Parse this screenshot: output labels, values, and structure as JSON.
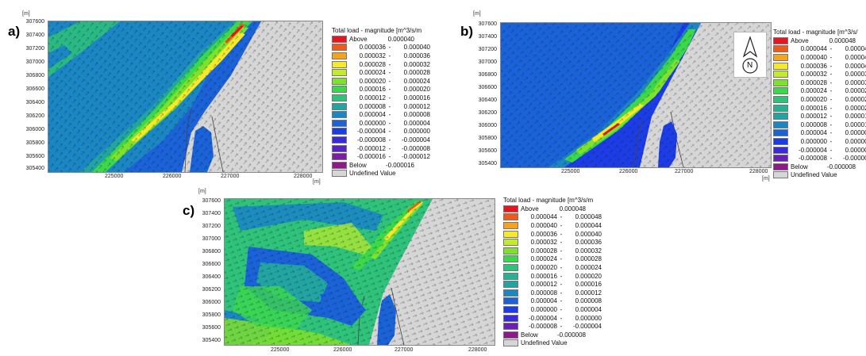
{
  "panels": [
    {
      "letter": "a)",
      "unit_y": "[m]",
      "unit_x": "[m]",
      "yticks": [
        "307600",
        "307400",
        "307200",
        "307000",
        "306800",
        "306600",
        "306400",
        "306200",
        "306000",
        "305800",
        "305600",
        "305400"
      ],
      "xticks": [
        "225000",
        "226000",
        "227000",
        "228000"
      ],
      "legend_title": "Total load - magnitude [m^3/s/m",
      "legend": [
        {
          "label": "Above",
          "hi": "0.000040",
          "color": "#e8141e"
        },
        {
          "lo": "0.000036",
          "hi": "0.000040",
          "color": "#ee5a18"
        },
        {
          "lo": "0.000032",
          "hi": "0.000036",
          "color": "#f5a21c"
        },
        {
          "lo": "0.000028",
          "hi": "0.000032",
          "color": "#f6e82a"
        },
        {
          "lo": "0.000024",
          "hi": "0.000028",
          "color": "#c2ec2a"
        },
        {
          "lo": "0.000020",
          "hi": "0.000024",
          "color": "#7ee22c"
        },
        {
          "lo": "0.000016",
          "hi": "0.000020",
          "color": "#3cd84c"
        },
        {
          "lo": "0.000012",
          "hi": "0.000016",
          "color": "#2ec27a"
        },
        {
          "lo": "0.000008",
          "hi": "0.000012",
          "color": "#22a4a2"
        },
        {
          "lo": "0.000004",
          "hi": "0.000008",
          "color": "#1a86c4"
        },
        {
          "lo": "0.000000",
          "hi": "0.000004",
          "color": "#1a62d8"
        },
        {
          "lo": "-0.000004",
          "hi": "0.000000",
          "color": "#1c3ce6"
        },
        {
          "lo": "-0.000008",
          "hi": "-0.000004",
          "color": "#3a2adc"
        },
        {
          "lo": "-0.000012",
          "hi": "-0.000008",
          "color": "#5a22c6"
        },
        {
          "lo": "-0.000016",
          "hi": "-0.000012",
          "color": "#7a1ea8"
        },
        {
          "label": "Below",
          "hi": "-0.000016",
          "color": "#8e1a8a"
        },
        {
          "label": "Undefined Value",
          "color": "#d6d6d6"
        }
      ]
    },
    {
      "letter": "b)",
      "unit_y": "[m]",
      "unit_x": "[m]",
      "yticks": [
        "307600",
        "307400",
        "307200",
        "307000",
        "306800",
        "306600",
        "306400",
        "306200",
        "306000",
        "305800",
        "305600",
        "305400"
      ],
      "xticks": [
        "225000",
        "226000",
        "227000",
        "228000"
      ],
      "legend_title": "Total load - magnitude [m^3/s/",
      "north_label": "N",
      "legend": [
        {
          "label": "Above",
          "hi": "0.000048",
          "color": "#e8141e"
        },
        {
          "lo": "0.000044",
          "hi": "0.000048",
          "color": "#ee5a18"
        },
        {
          "lo": "0.000040",
          "hi": "0.000044",
          "color": "#f5a21c"
        },
        {
          "lo": "0.000036",
          "hi": "0.000040",
          "color": "#f6e82a"
        },
        {
          "lo": "0.000032",
          "hi": "0.000036",
          "color": "#c2ec2a"
        },
        {
          "lo": "0.000028",
          "hi": "0.000032",
          "color": "#7ee22c"
        },
        {
          "lo": "0.000024",
          "hi": "0.000028",
          "color": "#3cd84c"
        },
        {
          "lo": "0.000020",
          "hi": "0.000024",
          "color": "#2ec27a"
        },
        {
          "lo": "0.000016",
          "hi": "0.000020",
          "color": "#26b292"
        },
        {
          "lo": "0.000012",
          "hi": "0.000016",
          "color": "#22a4a2"
        },
        {
          "lo": "0.000008",
          "hi": "0.000012",
          "color": "#1a86c4"
        },
        {
          "lo": "0.000004",
          "hi": "0.000008",
          "color": "#1a62d8"
        },
        {
          "lo": "0.000000",
          "hi": "0.000004",
          "color": "#1c3ce6"
        },
        {
          "lo": "-0.000004",
          "hi": "0.000000",
          "color": "#3a2adc"
        },
        {
          "lo": "-0.000008",
          "hi": "-0.000004",
          "color": "#6a20b8"
        },
        {
          "label": "Below",
          "hi": "-0.000008",
          "color": "#8e1a8a"
        },
        {
          "label": "Undefined Value",
          "color": "#d6d6d6"
        }
      ]
    },
    {
      "letter": "c)",
      "unit_y": "[m]",
      "yticks": [
        "307600",
        "307400",
        "307200",
        "307000",
        "306800",
        "306600",
        "306400",
        "306200",
        "306000",
        "305800",
        "305600",
        "305400"
      ],
      "xticks": [
        "225000",
        "226000",
        "227000",
        "228000"
      ],
      "legend_title": "Total load - magnitude [m^3/s/m",
      "legend": [
        {
          "label": "Above",
          "hi": "0.000048",
          "color": "#e8141e"
        },
        {
          "lo": "0.000044",
          "hi": "0.000048",
          "color": "#ee5a18"
        },
        {
          "lo": "0.000040",
          "hi": "0.000044",
          "color": "#f5a21c"
        },
        {
          "lo": "0.000036",
          "hi": "0.000040",
          "color": "#f6e82a"
        },
        {
          "lo": "0.000032",
          "hi": "0.000036",
          "color": "#c2ec2a"
        },
        {
          "lo": "0.000028",
          "hi": "0.000032",
          "color": "#7ee22c"
        },
        {
          "lo": "0.000024",
          "hi": "0.000028",
          "color": "#3cd84c"
        },
        {
          "lo": "0.000020",
          "hi": "0.000024",
          "color": "#2ec27a"
        },
        {
          "lo": "0.000016",
          "hi": "0.000020",
          "color": "#26b292"
        },
        {
          "lo": "0.000012",
          "hi": "0.000016",
          "color": "#22a4a2"
        },
        {
          "lo": "0.000008",
          "hi": "0.000012",
          "color": "#1a86c4"
        },
        {
          "lo": "0.000004",
          "hi": "0.000008",
          "color": "#1a62d8"
        },
        {
          "lo": "0.000000",
          "hi": "0.000004",
          "color": "#1c3ce6"
        },
        {
          "lo": "-0.000004",
          "hi": "0.000000",
          "color": "#3a2adc"
        },
        {
          "lo": "-0.000008",
          "hi": "-0.000004",
          "color": "#6a20b8"
        },
        {
          "label": "Below",
          "hi": "-0.000008",
          "color": "#8e1a8a"
        },
        {
          "label": "Undefined Value",
          "color": "#d6d6d6"
        }
      ]
    }
  ]
}
